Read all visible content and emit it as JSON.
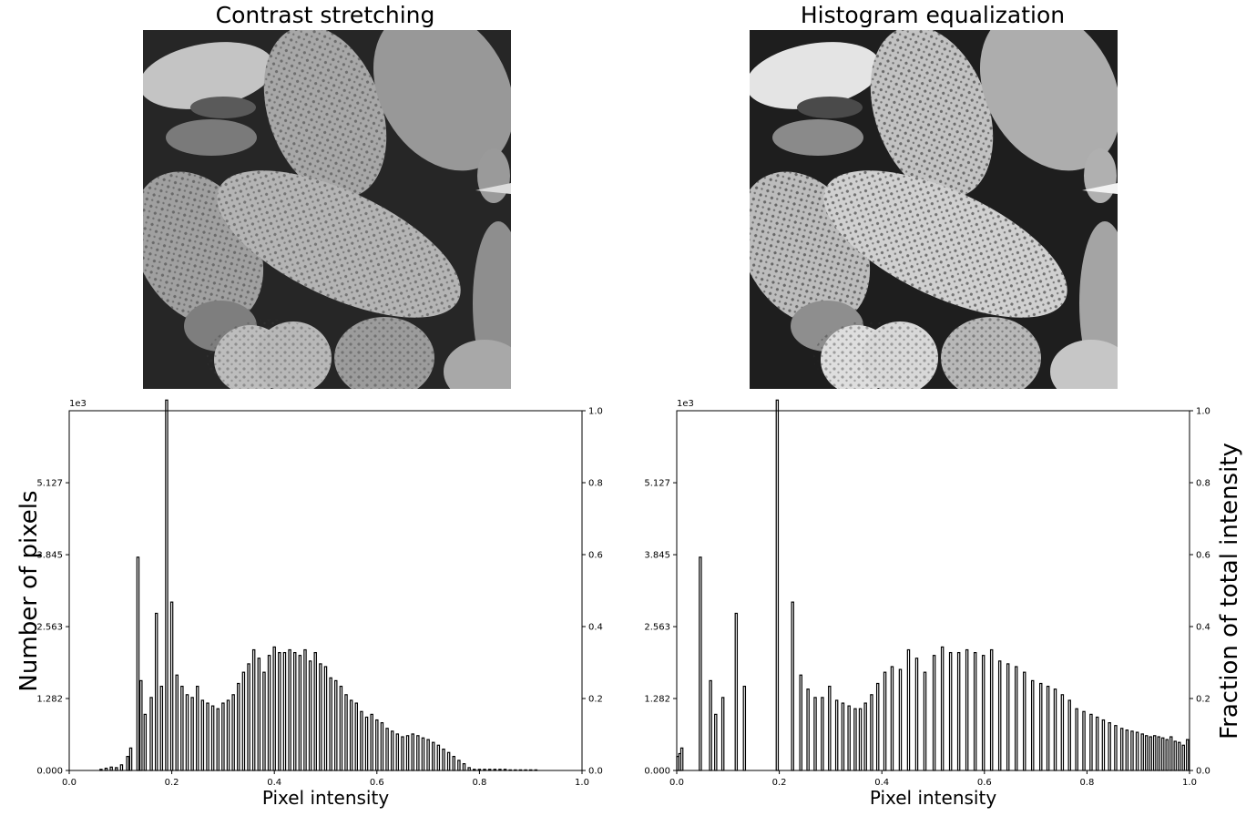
{
  "panels": [
    {
      "title": "Contrast stretching"
    },
    {
      "title": "Histogram equalization"
    }
  ],
  "shared": {
    "ylabel_left": "Number of pixels",
    "ylabel_right": "Fraction of total intensity",
    "xlabel": "Pixel intensity",
    "offset_text": "1e3"
  },
  "chart_data": [
    {
      "type": "bar",
      "title": "",
      "xlabel": "Pixel intensity",
      "ylabel": "Number of pixels",
      "y2label": "Fraction of total intensity",
      "xlim": [
        0,
        1
      ],
      "ylim": [
        0,
        6.41
      ],
      "y2lim": [
        0,
        1
      ],
      "y_scale_note": "1e3",
      "xticks": [
        "0.0",
        "0.2",
        "0.4",
        "0.6",
        "0.8",
        "1.0"
      ],
      "yticks": [
        "0.000",
        "1.282",
        "2.563",
        "3.845",
        "5.127"
      ],
      "y2ticks": [
        "0.0",
        "0.2",
        "0.4",
        "0.6",
        "0.8",
        "1.0"
      ],
      "bar_width": 0.004,
      "x": [
        0.06,
        0.07,
        0.08,
        0.09,
        0.1,
        0.112,
        0.118,
        0.132,
        0.138,
        0.146,
        0.158,
        0.168,
        0.178,
        0.188,
        0.198,
        0.208,
        0.218,
        0.228,
        0.238,
        0.248,
        0.258,
        0.268,
        0.278,
        0.288,
        0.298,
        0.308,
        0.318,
        0.328,
        0.338,
        0.348,
        0.358,
        0.368,
        0.378,
        0.388,
        0.398,
        0.408,
        0.418,
        0.428,
        0.438,
        0.448,
        0.458,
        0.468,
        0.478,
        0.488,
        0.498,
        0.508,
        0.518,
        0.528,
        0.538,
        0.548,
        0.558,
        0.568,
        0.578,
        0.588,
        0.598,
        0.608,
        0.618,
        0.628,
        0.638,
        0.648,
        0.658,
        0.668,
        0.678,
        0.688,
        0.698,
        0.708,
        0.718,
        0.728,
        0.738,
        0.748,
        0.758,
        0.768,
        0.778,
        0.788,
        0.798,
        0.808,
        0.818,
        0.828,
        0.838,
        0.848,
        0.858,
        0.868,
        0.878,
        0.888,
        0.898,
        0.908
      ],
      "values": [
        0.02,
        0.04,
        0.06,
        0.05,
        0.1,
        0.25,
        0.4,
        3.8,
        1.6,
        1.0,
        1.3,
        2.8,
        1.5,
        6.6,
        3.0,
        1.7,
        1.5,
        1.35,
        1.3,
        1.5,
        1.25,
        1.2,
        1.15,
        1.1,
        1.2,
        1.25,
        1.35,
        1.55,
        1.75,
        1.9,
        2.15,
        2.0,
        1.75,
        2.05,
        2.2,
        2.1,
        2.1,
        2.15,
        2.1,
        2.05,
        2.15,
        1.95,
        2.1,
        1.9,
        1.85,
        1.65,
        1.6,
        1.5,
        1.35,
        1.25,
        1.2,
        1.05,
        0.95,
        1.0,
        0.9,
        0.85,
        0.75,
        0.7,
        0.65,
        0.6,
        0.62,
        0.65,
        0.62,
        0.58,
        0.55,
        0.5,
        0.45,
        0.38,
        0.32,
        0.25,
        0.18,
        0.12,
        0.05,
        0.02,
        0.02,
        0.02,
        0.02,
        0.02,
        0.02,
        0.02,
        0.01,
        0.01,
        0.01,
        0.01,
        0.01,
        0.01
      ]
    },
    {
      "type": "bar",
      "title": "",
      "xlabel": "Pixel intensity",
      "ylabel": "Number of pixels",
      "y2label": "Fraction of total intensity",
      "xlim": [
        0,
        1
      ],
      "ylim": [
        0,
        6.41
      ],
      "y2lim": [
        0,
        1
      ],
      "y_scale_note": "1e3",
      "xticks": [
        "0.0",
        "0.2",
        "0.4",
        "0.6",
        "0.8",
        "1.0"
      ],
      "yticks": [
        "0.000",
        "1.282",
        "2.563",
        "3.845",
        "5.127"
      ],
      "y2ticks": [
        "0.0",
        "0.2",
        "0.4",
        "0.6",
        "0.8",
        "1.0"
      ],
      "bar_width": 0.004,
      "x": [
        0.0,
        0.004,
        0.008,
        0.044,
        0.064,
        0.074,
        0.088,
        0.114,
        0.13,
        0.194,
        0.224,
        0.24,
        0.254,
        0.268,
        0.282,
        0.296,
        0.31,
        0.322,
        0.334,
        0.346,
        0.356,
        0.366,
        0.378,
        0.39,
        0.404,
        0.418,
        0.434,
        0.45,
        0.466,
        0.482,
        0.5,
        0.516,
        0.532,
        0.548,
        0.564,
        0.58,
        0.596,
        0.612,
        0.628,
        0.644,
        0.66,
        0.676,
        0.692,
        0.708,
        0.722,
        0.736,
        0.75,
        0.764,
        0.778,
        0.792,
        0.806,
        0.818,
        0.83,
        0.842,
        0.854,
        0.866,
        0.876,
        0.886,
        0.896,
        0.906,
        0.914,
        0.922,
        0.93,
        0.938,
        0.946,
        0.954,
        0.962,
        0.97,
        0.978,
        0.986,
        0.994
      ],
      "values": [
        0.25,
        0.3,
        0.4,
        3.8,
        1.6,
        1.0,
        1.3,
        2.8,
        1.5,
        6.6,
        3.0,
        1.7,
        1.45,
        1.3,
        1.3,
        1.5,
        1.25,
        1.2,
        1.15,
        1.1,
        1.1,
        1.2,
        1.35,
        1.55,
        1.75,
        1.85,
        1.8,
        2.15,
        2.0,
        1.75,
        2.05,
        2.2,
        2.1,
        2.1,
        2.15,
        2.1,
        2.05,
        2.15,
        1.95,
        1.9,
        1.85,
        1.75,
        1.6,
        1.55,
        1.5,
        1.45,
        1.35,
        1.25,
        1.1,
        1.05,
        1.0,
        0.95,
        0.9,
        0.85,
        0.8,
        0.75,
        0.72,
        0.7,
        0.68,
        0.65,
        0.62,
        0.6,
        0.62,
        0.6,
        0.58,
        0.55,
        0.6,
        0.52,
        0.5,
        0.45,
        0.55
      ]
    }
  ]
}
